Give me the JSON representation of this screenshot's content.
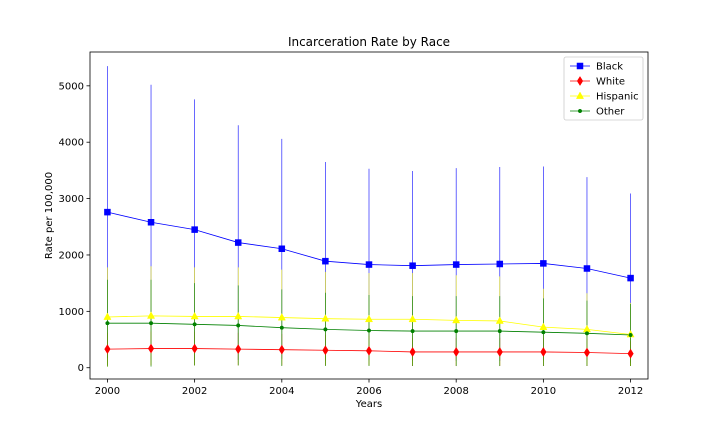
{
  "chart_data": {
    "type": "line",
    "title": "Incarceration Rate by Race",
    "xlabel": "Years",
    "ylabel": "Rate per 100,000",
    "x": [
      2000,
      2001,
      2002,
      2003,
      2004,
      2005,
      2006,
      2007,
      2008,
      2009,
      2010,
      2011,
      2012
    ],
    "xlim": [
      1999.6,
      2012.4
    ],
    "ylim": [
      -200,
      5600
    ],
    "x_ticks": [
      2000,
      2002,
      2004,
      2006,
      2008,
      2010,
      2012
    ],
    "y_ticks": [
      0,
      1000,
      2000,
      3000,
      4000,
      5000
    ],
    "grid": false,
    "legend_position": "top-right",
    "error_bars": true,
    "series": [
      {
        "name": "Black",
        "color": "#0000ff",
        "marker": "square",
        "values": [
          2760,
          2580,
          2450,
          2220,
          2110,
          1890,
          1830,
          1810,
          1830,
          1840,
          1850,
          1760,
          1590
        ],
        "upper": [
          5350,
          5020,
          4760,
          4300,
          4060,
          3650,
          3530,
          3490,
          3540,
          3560,
          3570,
          3380,
          3090
        ],
        "lower": [
          170,
          140,
          140,
          140,
          160,
          130,
          130,
          130,
          120,
          120,
          130,
          140,
          90
        ]
      },
      {
        "name": "White",
        "color": "#ff0000",
        "marker": "diamond",
        "values": [
          330,
          340,
          340,
          330,
          320,
          310,
          300,
          280,
          280,
          280,
          280,
          270,
          250
        ],
        "upper": [
          620,
          640,
          640,
          620,
          600,
          580,
          560,
          530,
          530,
          530,
          530,
          510,
          470
        ],
        "lower": [
          40,
          40,
          40,
          40,
          40,
          40,
          40,
          30,
          30,
          30,
          30,
          30,
          30
        ]
      },
      {
        "name": "Hispanic",
        "color": "#ffff00",
        "marker": "triangle",
        "values": [
          900,
          920,
          910,
          910,
          890,
          870,
          860,
          860,
          840,
          830,
          720,
          680,
          590
        ],
        "upper": [
          1780,
          1800,
          1780,
          1780,
          1740,
          1700,
          1680,
          1680,
          1640,
          1620,
          1400,
          1320,
          1150
        ],
        "lower": [
          20,
          40,
          40,
          40,
          40,
          40,
          40,
          40,
          40,
          40,
          40,
          40,
          30
        ]
      },
      {
        "name": "Other",
        "color": "#008000",
        "marker": "dot",
        "values": [
          790,
          790,
          770,
          750,
          710,
          680,
          660,
          650,
          650,
          650,
          630,
          610,
          580
        ],
        "upper": [
          1560,
          1560,
          1500,
          1460,
          1390,
          1330,
          1290,
          1270,
          1270,
          1270,
          1230,
          1190,
          1130
        ],
        "lower": [
          20,
          20,
          40,
          40,
          30,
          30,
          30,
          30,
          30,
          30,
          30,
          30,
          30
        ]
      }
    ]
  }
}
